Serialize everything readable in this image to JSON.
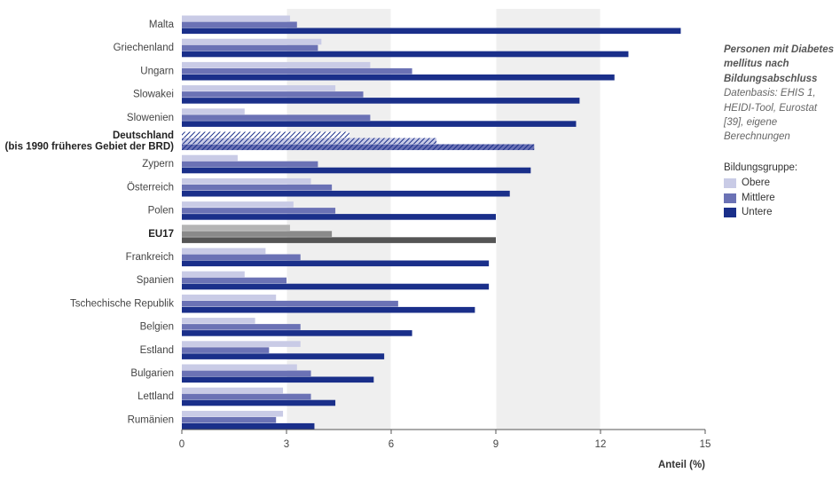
{
  "chart_data": {
    "type": "bar",
    "orientation": "horizontal",
    "categories": [
      "Malta",
      "Griechenland",
      "Ungarn",
      "Slowakei",
      "Slowenien",
      "Deutschland\n(bis 1990 früheres Gebiet der BRD)",
      "Zypern",
      "Österreich",
      "Polen",
      "EU17",
      "Frankreich",
      "Spanien",
      "Tschechische Republik",
      "Belgien",
      "Estland",
      "Bulgarien",
      "Lettland",
      "Rumänien"
    ],
    "highlighted_categories": [
      "Deutschland\n(bis 1990 früheres Gebiet der BRD)",
      "EU17"
    ],
    "series": [
      {
        "name": "Obere",
        "values": [
          3.1,
          4.0,
          5.4,
          4.4,
          1.8,
          4.8,
          1.6,
          3.7,
          3.2,
          3.1,
          2.4,
          1.8,
          2.7,
          2.1,
          3.4,
          3.3,
          2.9,
          2.9
        ]
      },
      {
        "name": "Mittlere",
        "values": [
          3.3,
          3.9,
          6.6,
          5.2,
          5.4,
          7.3,
          3.9,
          4.3,
          4.4,
          4.3,
          3.4,
          3.0,
          6.2,
          3.4,
          2.5,
          3.7,
          3.7,
          2.7
        ]
      },
      {
        "name": "Untere",
        "values": [
          14.3,
          12.8,
          12.4,
          11.4,
          11.3,
          10.1,
          10.0,
          9.4,
          9.0,
          9.0,
          8.8,
          8.8,
          8.4,
          6.6,
          5.8,
          5.5,
          4.4,
          3.8
        ]
      }
    ],
    "xlim": [
      0,
      15
    ],
    "xticks": [
      0,
      3,
      6,
      9,
      12,
      15
    ],
    "xlabel": "Anteil (%)",
    "colors": {
      "Obere": "#c9cbe6",
      "Mittlere": "#6b72b5",
      "Untere": "#1a2f8a",
      "eu_obere": "#b4b4b4",
      "eu_mittlere": "#8a8a8a",
      "eu_untere": "#555555",
      "band": "#efefef"
    },
    "note_title": "Personen mit Diabetes mellitus nach Bildungsabschluss",
    "note_source": "Datenbasis: EHIS 1, HEIDI-Tool, Eurostat [39], eigene Berechnungen",
    "legend_title": "Bildungsgruppe:",
    "legend_position": "right"
  }
}
